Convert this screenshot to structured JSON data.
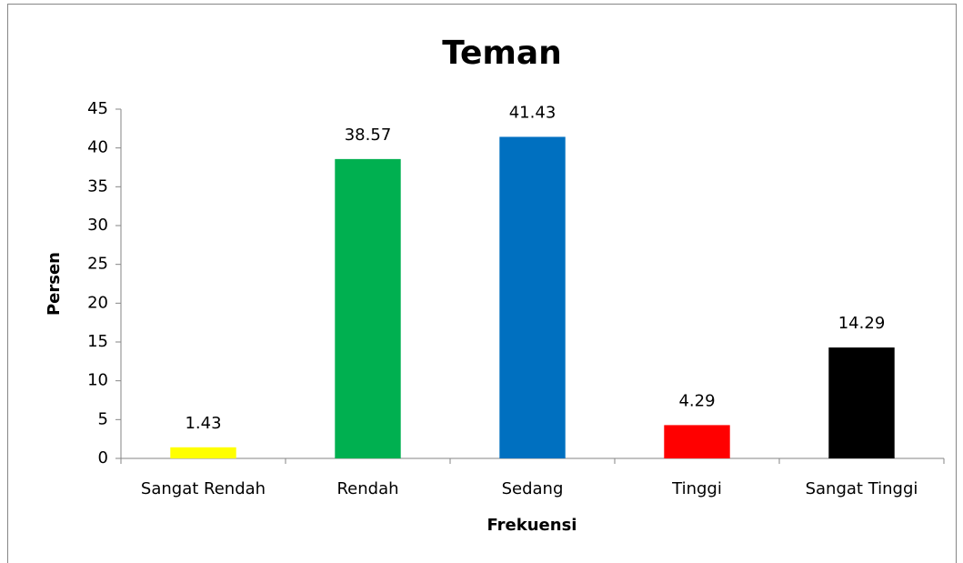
{
  "chart_data": {
    "type": "bar",
    "title": "Teman",
    "x_label": "Frekuensi",
    "y_label": "Persen",
    "categories": [
      "Sangat Rendah",
      "Rendah",
      "Sedang",
      "Tinggi",
      "Sangat Tinggi"
    ],
    "values": [
      1.43,
      38.57,
      41.43,
      4.29,
      14.29
    ],
    "colors": [
      "#ffff00",
      "#00b050",
      "#0070c0",
      "#ff0000",
      "#000000"
    ],
    "ylim": [
      0,
      45
    ],
    "yticks": [
      0,
      5,
      10,
      15,
      20,
      25,
      30,
      35,
      40,
      45
    ],
    "grid": false
  }
}
